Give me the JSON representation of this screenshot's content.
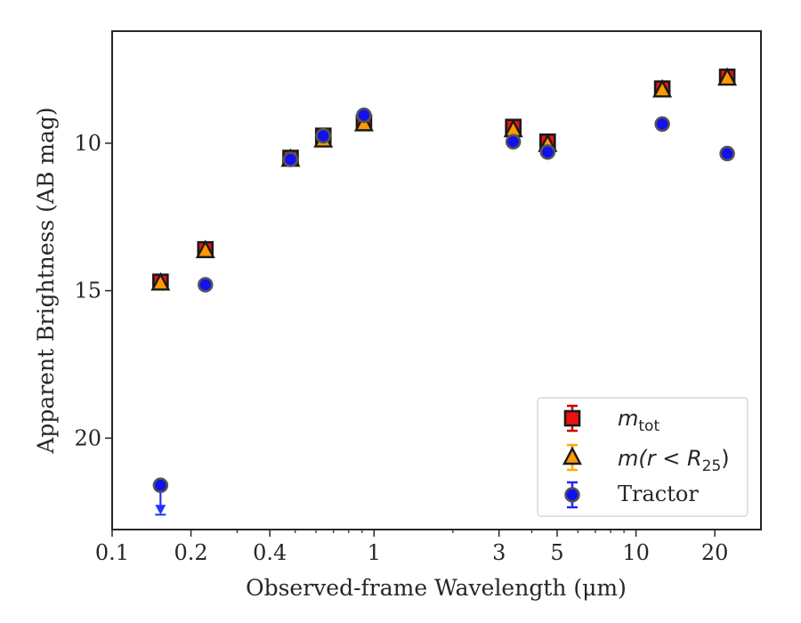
{
  "chart_data": {
    "type": "scatter",
    "title": "",
    "xlabel": "Observed-frame Wavelength (μm)",
    "ylabel": "Apparent Brightness (AB mag)",
    "xscale": "log",
    "xlim": [
      0.1,
      30
    ],
    "ylim": [
      23.1,
      6.2
    ],
    "y_inverted": true,
    "x_ticks": [
      {
        "value": 0.1,
        "label": "0.1"
      },
      {
        "value": 0.2,
        "label": "0.2"
      },
      {
        "value": 0.4,
        "label": "0.4"
      },
      {
        "value": 1,
        "label": "1"
      },
      {
        "value": 3,
        "label": "3"
      },
      {
        "value": 5,
        "label": "5"
      },
      {
        "value": 10,
        "label": "10"
      },
      {
        "value": 20,
        "label": "20"
      }
    ],
    "y_ticks": [
      {
        "value": 10,
        "label": "10"
      },
      {
        "value": 15,
        "label": "15"
      },
      {
        "value": 20,
        "label": "20"
      }
    ],
    "grid": false,
    "legend_position": "bottom-right",
    "series": [
      {
        "key": "mtot",
        "marker": "square",
        "color": "#ee1111",
        "errcolor": "#cc0000",
        "points": [
          {
            "x": 0.153,
            "y": 14.7
          },
          {
            "x": 0.227,
            "y": 13.6
          },
          {
            "x": 0.48,
            "y": 10.5
          },
          {
            "x": 0.64,
            "y": 9.75
          },
          {
            "x": 0.915,
            "y": 9.3
          },
          {
            "x": 3.4,
            "y": 9.45
          },
          {
            "x": 4.6,
            "y": 9.95
          },
          {
            "x": 12.6,
            "y": 8.15
          },
          {
            "x": 22.3,
            "y": 7.75
          }
        ]
      },
      {
        "key": "m25",
        "marker": "triangle",
        "color": "#ff9900",
        "errcolor": "#ffaa00",
        "points": [
          {
            "x": 0.153,
            "y": 14.75
          },
          {
            "x": 0.227,
            "y": 13.65
          },
          {
            "x": 0.48,
            "y": 10.55
          },
          {
            "x": 0.64,
            "y": 9.9
          },
          {
            "x": 0.915,
            "y": 9.35
          },
          {
            "x": 3.4,
            "y": 9.55
          },
          {
            "x": 4.6,
            "y": 10.05
          },
          {
            "x": 12.6,
            "y": 8.2
          },
          {
            "x": 22.3,
            "y": 7.8
          }
        ]
      },
      {
        "key": "tractor",
        "marker": "circle",
        "color": "#1111ee",
        "errcolor": "#2222ff",
        "points": [
          {
            "x": 0.153,
            "y": 21.6,
            "upper_limit": true
          },
          {
            "x": 0.227,
            "y": 14.8
          },
          {
            "x": 0.48,
            "y": 10.55
          },
          {
            "x": 0.64,
            "y": 9.75
          },
          {
            "x": 0.915,
            "y": 9.05
          },
          {
            "x": 3.4,
            "y": 9.95
          },
          {
            "x": 4.6,
            "y": 10.3
          },
          {
            "x": 12.6,
            "y": 9.35
          },
          {
            "x": 22.3,
            "y": 10.35
          }
        ]
      }
    ],
    "legend": [
      {
        "series": "mtot",
        "label_main": "m",
        "label_sub": "tot"
      },
      {
        "series": "m25",
        "label_main": "m(r < R",
        "label_sub": "25",
        "label_end": ")"
      },
      {
        "series": "tractor",
        "label_main": "Tractor"
      }
    ]
  }
}
